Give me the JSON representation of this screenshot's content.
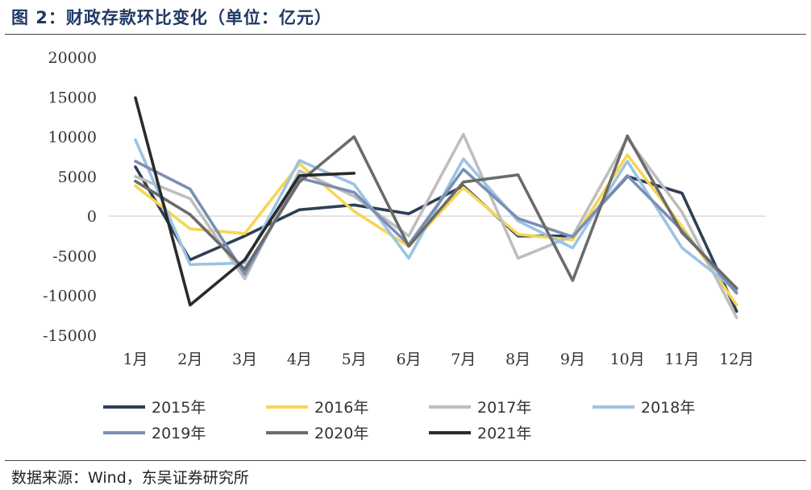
{
  "header": {
    "title": "图 2：财政存款环比变化（单位：亿元）"
  },
  "footer": {
    "source": "数据来源：Wind，东吴证券研究所"
  },
  "chart_data": {
    "type": "line",
    "title": "",
    "xlabel": "",
    "ylabel": "",
    "ylim": [
      -15000,
      20000
    ],
    "yticks": [
      20000,
      15000,
      10000,
      5000,
      0,
      -5000,
      -10000,
      -15000
    ],
    "categories": [
      "1月",
      "2月",
      "3月",
      "4月",
      "5月",
      "6月",
      "7月",
      "8月",
      "9月",
      "10月",
      "11月",
      "12月"
    ],
    "legend_position": "bottom",
    "series": [
      {
        "name": "2015年",
        "color": "#2e3f55",
        "values": [
          6200,
          -5500,
          -2500,
          800,
          1400,
          300,
          3800,
          -2500,
          -2500,
          5000,
          2900,
          -12000
        ]
      },
      {
        "name": "2016年",
        "color": "#f7d554",
        "values": [
          3800,
          -1600,
          -2200,
          6600,
          600,
          -3800,
          3600,
          -2300,
          -3000,
          7700,
          -1300,
          -11200
        ]
      },
      {
        "name": "2017年",
        "color": "#bebebe",
        "values": [
          5000,
          2200,
          -7900,
          5700,
          2500,
          -2500,
          10300,
          -5300,
          -2500,
          9800,
          500,
          -12800
        ]
      },
      {
        "name": "2018年",
        "color": "#9cc3e4",
        "values": [
          9600,
          -6100,
          -5900,
          7000,
          4000,
          -5300,
          7200,
          -600,
          -4000,
          6900,
          -4000,
          -9400
        ]
      },
      {
        "name": "2019年",
        "color": "#7b8fb3",
        "values": [
          6900,
          3400,
          -7300,
          4800,
          3000,
          -3600,
          5900,
          -300,
          -2600,
          5100,
          -1800,
          -9700
        ]
      },
      {
        "name": "2020年",
        "color": "#6b6b6b",
        "values": [
          4400,
          200,
          -6700,
          4300,
          10000,
          -3800,
          4300,
          5200,
          -8100,
          10100,
          -2100,
          -9100
        ]
      },
      {
        "name": "2021年",
        "color": "#2b2b2b",
        "values": [
          14900,
          -11200,
          -5500,
          5100,
          5400,
          null,
          null,
          null,
          null,
          null,
          null,
          null
        ]
      }
    ]
  }
}
